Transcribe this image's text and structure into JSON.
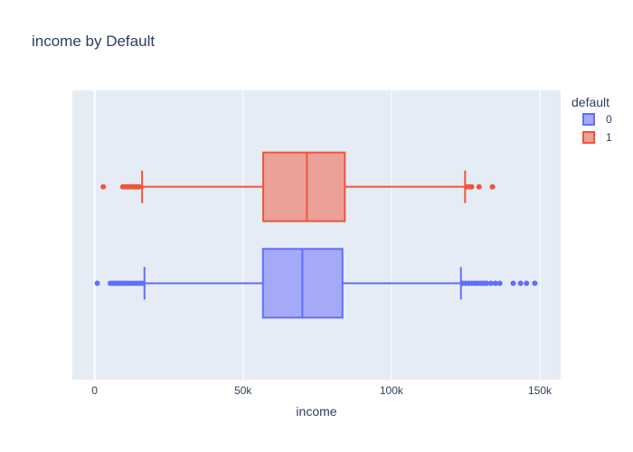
{
  "chart_data": {
    "type": "box",
    "orientation": "horizontal",
    "title": "income by Default",
    "xlabel": "income",
    "ylabel": "",
    "xlim": [
      -7500,
      157000
    ],
    "x_ticks": [
      {
        "value": 0,
        "label": "0"
      },
      {
        "value": 50000,
        "label": "50k"
      },
      {
        "value": 100000,
        "label": "100k"
      },
      {
        "value": 150000,
        "label": "150k"
      }
    ],
    "grid": true,
    "legend": {
      "title": "default",
      "placement": "top-right"
    },
    "series": [
      {
        "name": "0",
        "color": "#636efa",
        "fill": "#a5aaf8",
        "lower_fence": 16800,
        "q1": 56700,
        "median": 70000,
        "q3": 83500,
        "upper_fence": 123400,
        "outliers": [
          900,
          5300,
          6200,
          7100,
          8000,
          9000,
          10000,
          11000,
          12000,
          13000,
          14000,
          15000,
          16000,
          124000,
          125000,
          126000,
          127000,
          128000,
          129000,
          130000,
          131000,
          132000,
          133500,
          135000,
          136500,
          141000,
          143500,
          145500,
          148300
        ]
      },
      {
        "name": "1",
        "color": "#ef553b",
        "fill": "#eba197",
        "lower_fence": 16000,
        "q1": 56800,
        "median": 71500,
        "q3": 84300,
        "upper_fence": 124800,
        "outliers": [
          2900,
          9500,
          10200,
          11000,
          11800,
          12600,
          13400,
          14200,
          15000,
          125500,
          126500,
          127000,
          129500,
          134000
        ]
      }
    ]
  }
}
